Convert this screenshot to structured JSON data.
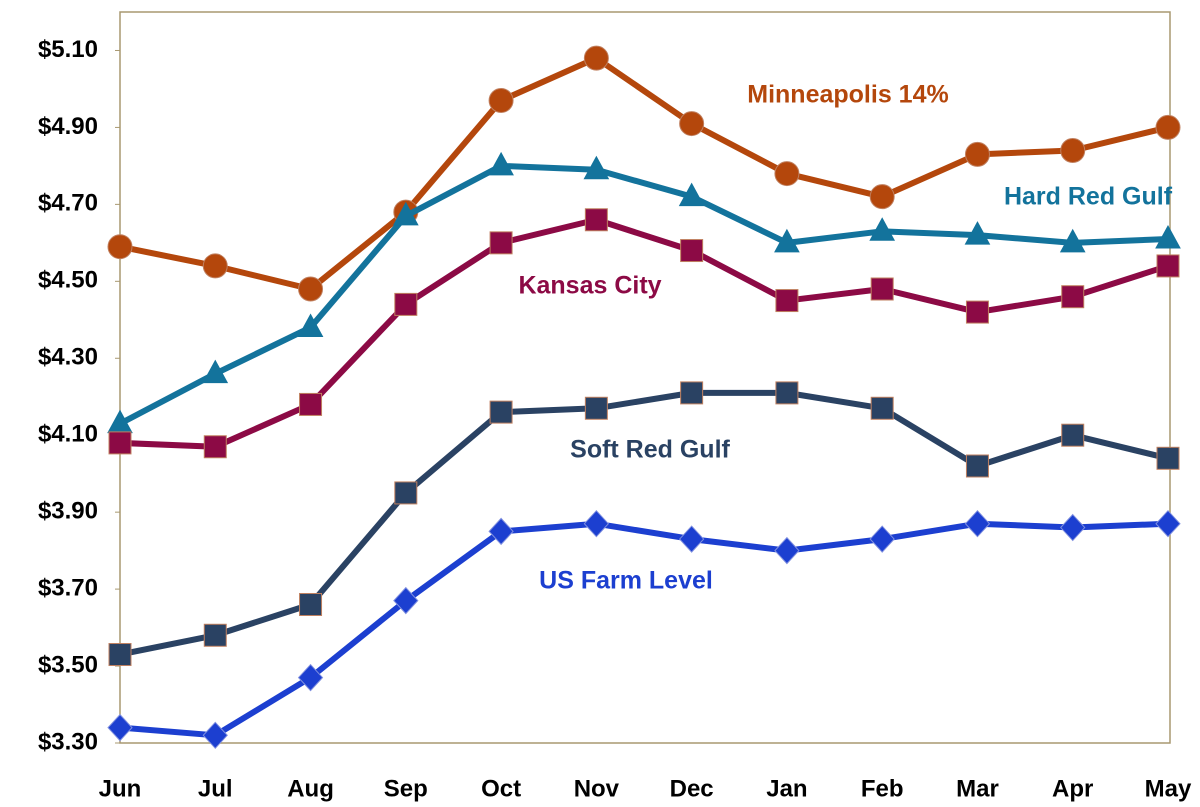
{
  "chart_data": {
    "type": "line",
    "categories": [
      "Jun",
      "Jul",
      "Aug",
      "Sep",
      "Oct",
      "Nov",
      "Dec",
      "Jan",
      "Feb",
      "Mar",
      "Apr",
      "May"
    ],
    "ylim": [
      3.3,
      5.2
    ],
    "yticks": [
      {
        "value": 3.3,
        "label": "$3.30"
      },
      {
        "value": 3.5,
        "label": "$3.50"
      },
      {
        "value": 3.7,
        "label": "$3.70"
      },
      {
        "value": 3.9,
        "label": "$3.90"
      },
      {
        "value": 4.1,
        "label": "$4.10"
      },
      {
        "value": 4.3,
        "label": "$4.30"
      },
      {
        "value": 4.5,
        "label": "$4.50"
      },
      {
        "value": 4.7,
        "label": "$4.70"
      },
      {
        "value": 4.9,
        "label": "$4.90"
      },
      {
        "value": 5.1,
        "label": "$5.10"
      }
    ],
    "grid": false,
    "series": [
      {
        "name": "Minneapolis 14%",
        "color": "#b4470c",
        "marker": "circle",
        "values": [
          4.59,
          4.54,
          4.48,
          4.68,
          4.97,
          5.08,
          4.91,
          4.78,
          4.72,
          4.83,
          4.84,
          4.9
        ]
      },
      {
        "name": "Hard Red Gulf",
        "color": "#13739c",
        "marker": "triangle",
        "values": [
          4.13,
          4.26,
          4.38,
          4.67,
          4.8,
          4.79,
          4.72,
          4.6,
          4.63,
          4.62,
          4.6,
          4.61
        ]
      },
      {
        "name": "Kansas City",
        "color": "#8c0a45",
        "marker": "square",
        "values": [
          4.08,
          4.07,
          4.18,
          4.44,
          4.6,
          4.66,
          4.58,
          4.45,
          4.48,
          4.42,
          4.46,
          4.54
        ]
      },
      {
        "name": "Soft Red Gulf",
        "color": "#2a4263",
        "marker": "square",
        "values": [
          3.53,
          3.58,
          3.66,
          3.95,
          4.16,
          4.17,
          4.21,
          4.21,
          4.17,
          4.02,
          4.1,
          4.04
        ]
      },
      {
        "name": "US Farm Level",
        "color": "#1c3fd0",
        "marker": "diamond",
        "values": [
          3.34,
          3.32,
          3.47,
          3.67,
          3.85,
          3.87,
          3.83,
          3.8,
          3.83,
          3.87,
          3.86,
          3.87
        ]
      }
    ]
  }
}
